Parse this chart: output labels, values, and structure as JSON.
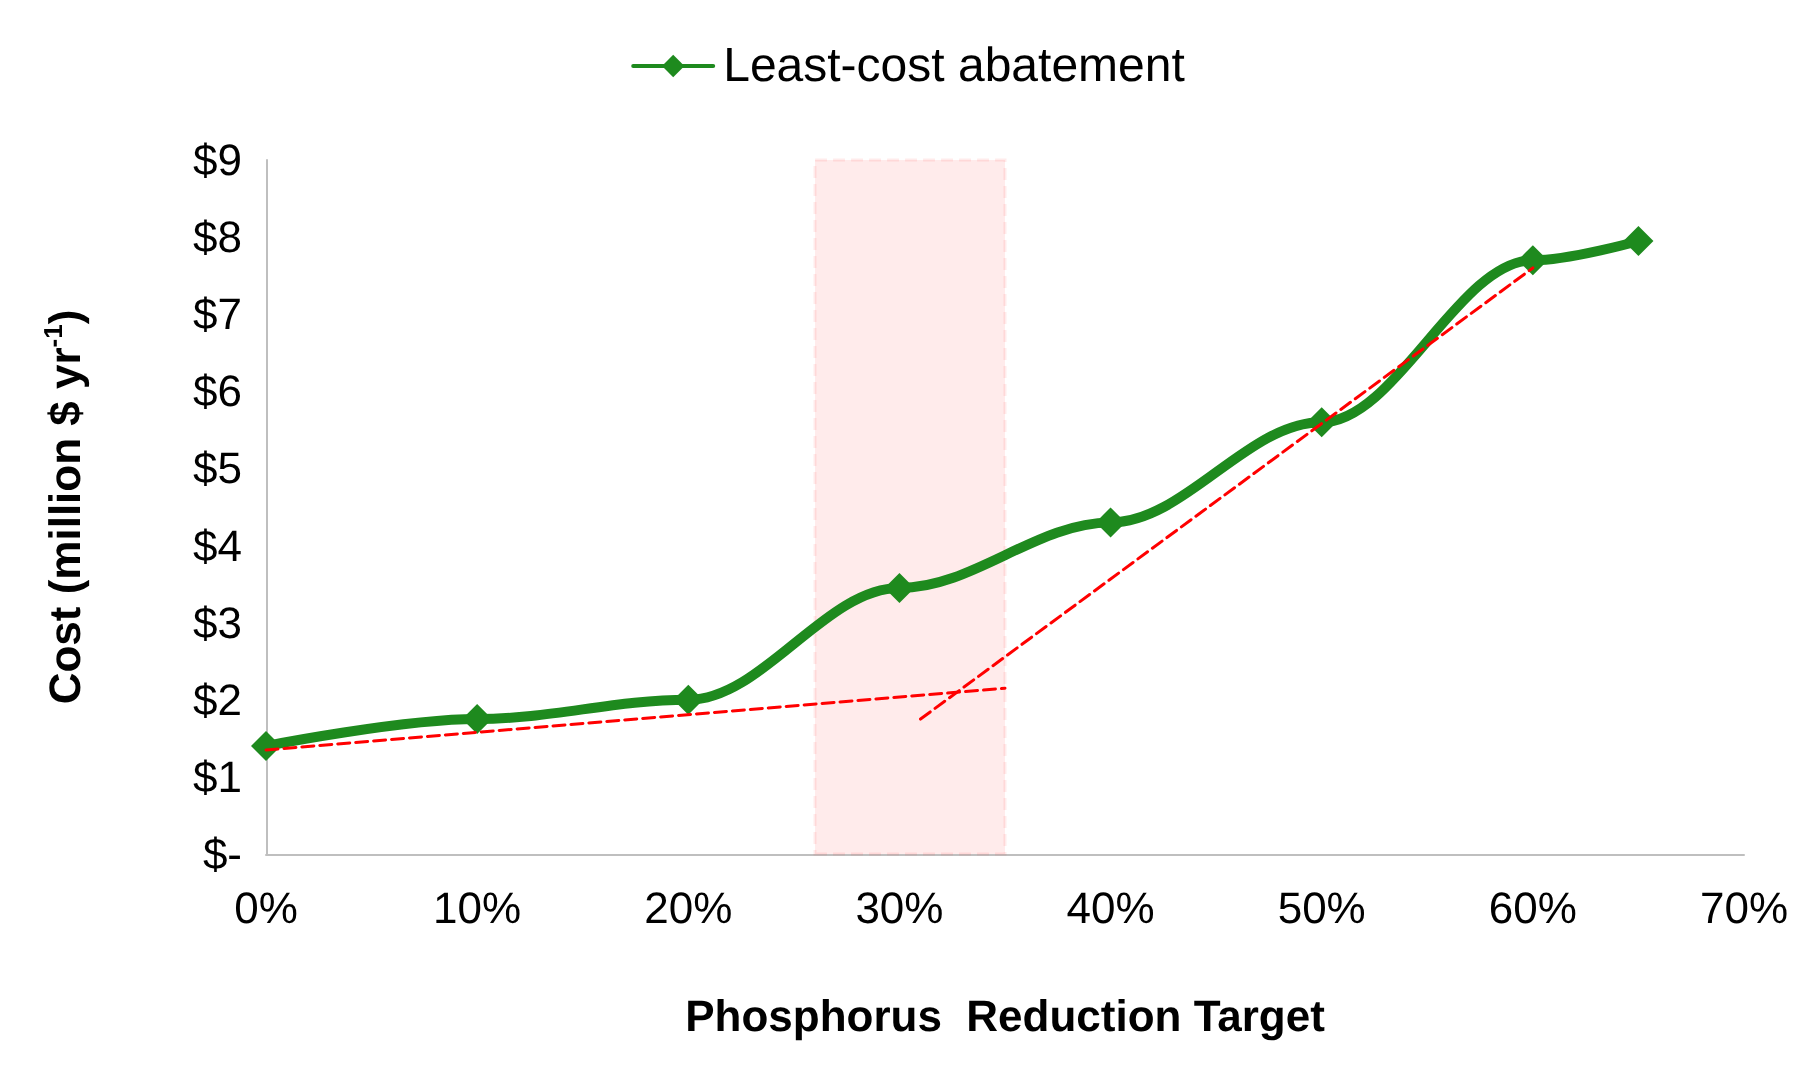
{
  "chart_data": {
    "type": "line",
    "xlabel": "Phosphorus  Reduction Target",
    "ylabel": "Cost (million $ yr$^{-1}$)",
    "x": [
      0,
      10,
      20,
      30,
      40,
      50,
      60,
      65
    ],
    "series": [
      {
        "name": "Least-cost abatement",
        "color": "#1e8a1e",
        "values": [
          1.4,
          1.75,
          2.0,
          3.45,
          4.3,
          5.6,
          7.7,
          7.95
        ],
        "marker": "diamond",
        "line_style": "solid"
      },
      {
        "type": "line",
        "color": "#ff0000",
        "x": [
          0,
          35
        ],
        "values": [
          1.35,
          2.15
        ],
        "marker": "none",
        "line_style": "dashed"
      },
      {
        "type": "line",
        "color": "#ff0000",
        "x": [
          31,
          60
        ],
        "values": [
          1.75,
          7.6
        ],
        "marker": "none",
        "line_style": "dashed"
      }
    ],
    "bands": [
      {
        "axis": "x",
        "from": 26,
        "to": 35,
        "color": "#ff0000"
      }
    ],
    "xlim": [
      0,
      70
    ],
    "xticks": [
      {
        "value": 0,
        "label": "0%"
      },
      {
        "value": 10,
        "label": "10%"
      },
      {
        "value": 20,
        "label": "20%"
      },
      {
        "value": 30,
        "label": "30%"
      },
      {
        "value": 40,
        "label": "40%"
      },
      {
        "value": 50,
        "label": "50%"
      },
      {
        "value": 60,
        "label": "60%"
      },
      {
        "value": 70,
        "label": "70%"
      }
    ],
    "ylim": [
      0,
      9
    ],
    "yticks": [
      {
        "value": 0,
        "label": "$-"
      },
      {
        "value": 1,
        "label": "$1"
      },
      {
        "value": 2,
        "label": "$2"
      },
      {
        "value": 3,
        "label": "$3"
      },
      {
        "value": 4,
        "label": "$4"
      },
      {
        "value": 5,
        "label": "$5"
      },
      {
        "value": 6,
        "label": "$6"
      },
      {
        "value": 7,
        "label": "$7"
      },
      {
        "value": 8,
        "label": "$8"
      },
      {
        "value": 9,
        "label": "$9"
      }
    ],
    "grid": false,
    "legend": "top"
  }
}
